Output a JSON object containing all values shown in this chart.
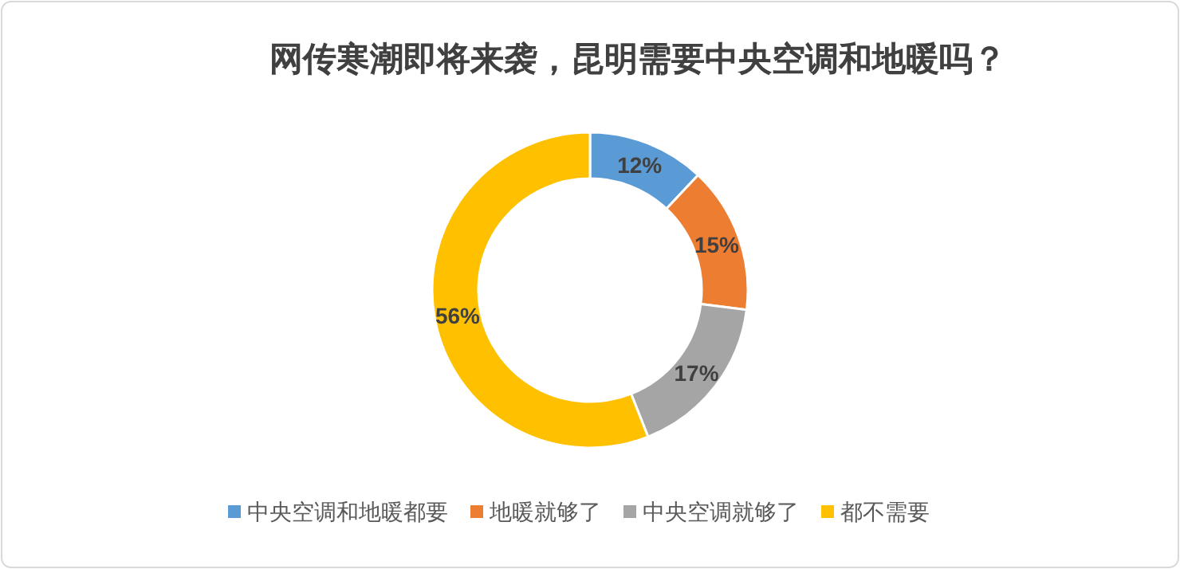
{
  "chart_data": {
    "type": "donut",
    "title": "网传寒潮即将来袭，昆明需要中央空调和地暖吗？",
    "categories": [
      "中央空调和地暖都要",
      "地暖就够了",
      "中央空调就够了",
      "都不需要"
    ],
    "values": [
      12,
      15,
      17,
      56
    ],
    "colors": [
      "#5b9bd5",
      "#ed7d31",
      "#a5a5a5",
      "#ffc000"
    ],
    "value_labels": [
      "12%",
      "15%",
      "17%",
      "56%"
    ],
    "legend": "bottom"
  }
}
